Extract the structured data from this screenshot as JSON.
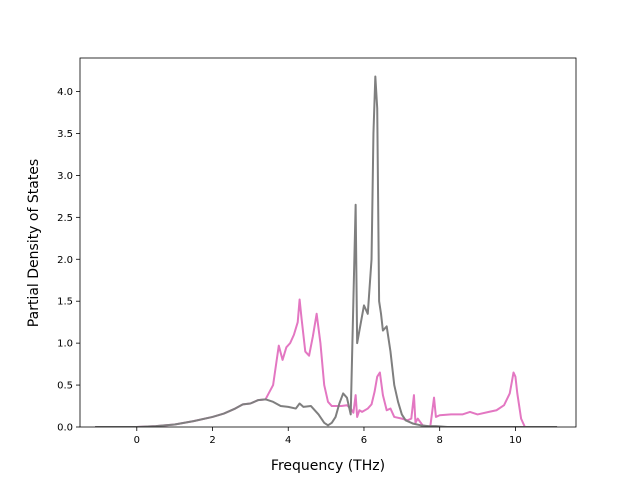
{
  "chart_data": {
    "type": "line",
    "title": "",
    "xlabel": "Frequency (THz)",
    "ylabel": "Partial Density of States",
    "xlim": [
      -1.5,
      11.6
    ],
    "ylim": [
      0,
      4.4
    ],
    "xticks": [
      0,
      2,
      4,
      6,
      8,
      10
    ],
    "xtick_labels": [
      "0",
      "2",
      "4",
      "6",
      "8",
      "10"
    ],
    "yticks": [
      0,
      0.5,
      1.0,
      1.5,
      2.0,
      2.5,
      3.0,
      3.5,
      4.0
    ],
    "ytick_labels": [
      "0.0",
      "0.5",
      "1.0",
      "1.5",
      "2.0",
      "2.5",
      "3.0",
      "3.5",
      "4.0"
    ],
    "grid": false,
    "legend": "none",
    "series": [
      {
        "color": "#e377c2",
        "x": [
          -1.1,
          -0.5,
          0,
          0.5,
          1.0,
          1.5,
          2.0,
          2.3,
          2.6,
          2.8,
          3.0,
          3.2,
          3.4,
          3.6,
          3.75,
          3.85,
          3.95,
          4.05,
          4.15,
          4.25,
          4.3,
          4.35,
          4.45,
          4.55,
          4.65,
          4.75,
          4.85,
          4.95,
          5.05,
          5.15,
          5.25,
          5.4,
          5.55,
          5.65,
          5.72,
          5.78,
          5.82,
          5.88,
          5.95,
          6.1,
          6.2,
          6.28,
          6.35,
          6.42,
          6.5,
          6.6,
          6.7,
          6.8,
          7.0,
          7.15,
          7.25,
          7.32,
          7.36,
          7.42,
          7.55,
          7.75,
          7.85,
          7.9,
          8.0,
          8.3,
          8.6,
          8.8,
          9.0,
          9.3,
          9.5,
          9.7,
          9.85,
          9.95,
          10.0,
          10.05,
          10.15,
          10.25,
          10.5,
          11.1
        ],
        "y": [
          0,
          0,
          0,
          0.01,
          0.03,
          0.07,
          0.12,
          0.16,
          0.22,
          0.27,
          0.28,
          0.32,
          0.33,
          0.5,
          0.97,
          0.8,
          0.95,
          1.0,
          1.1,
          1.25,
          1.52,
          1.3,
          0.9,
          0.85,
          1.08,
          1.35,
          1.0,
          0.5,
          0.3,
          0.25,
          0.25,
          0.25,
          0.26,
          0.22,
          0.17,
          0.38,
          0.12,
          0.2,
          0.18,
          0.22,
          0.27,
          0.42,
          0.6,
          0.65,
          0.38,
          0.2,
          0.22,
          0.12,
          0.1,
          0.08,
          0.1,
          0.38,
          0.05,
          0.1,
          0.02,
          0.0,
          0.35,
          0.12,
          0.14,
          0.15,
          0.15,
          0.18,
          0.15,
          0.18,
          0.2,
          0.26,
          0.4,
          0.65,
          0.6,
          0.4,
          0.1,
          0.0,
          0.0,
          0.0
        ]
      },
      {
        "color": "#7f7f7f",
        "x": [
          -1.1,
          -0.5,
          0,
          0.5,
          1.0,
          1.5,
          2.0,
          2.3,
          2.6,
          2.8,
          3.0,
          3.2,
          3.4,
          3.6,
          3.8,
          4.0,
          4.2,
          4.3,
          4.4,
          4.6,
          4.8,
          4.95,
          5.05,
          5.15,
          5.25,
          5.35,
          5.45,
          5.55,
          5.65,
          5.72,
          5.78,
          5.82,
          5.86,
          5.9,
          6.0,
          6.1,
          6.2,
          6.25,
          6.3,
          6.35,
          6.4,
          6.45,
          6.5,
          6.6,
          6.65,
          6.7,
          6.8,
          6.9,
          7.0,
          7.1,
          7.3,
          7.5,
          7.7,
          7.9,
          8.2,
          8.6,
          9.0,
          9.5,
          10.0,
          10.5,
          11.1
        ],
        "y": [
          0,
          0,
          0,
          0.01,
          0.03,
          0.07,
          0.12,
          0.16,
          0.22,
          0.27,
          0.28,
          0.32,
          0.33,
          0.3,
          0.25,
          0.24,
          0.22,
          0.28,
          0.24,
          0.25,
          0.15,
          0.05,
          0.02,
          0.05,
          0.12,
          0.28,
          0.4,
          0.35,
          0.15,
          1.5,
          2.65,
          1.0,
          1.1,
          1.2,
          1.45,
          1.35,
          2.0,
          3.5,
          4.18,
          3.8,
          1.5,
          1.35,
          1.15,
          1.2,
          1.05,
          0.9,
          0.5,
          0.3,
          0.15,
          0.08,
          0.04,
          0.02,
          0.01,
          0.01,
          0,
          0,
          0,
          0,
          0,
          0,
          0
        ]
      }
    ]
  }
}
